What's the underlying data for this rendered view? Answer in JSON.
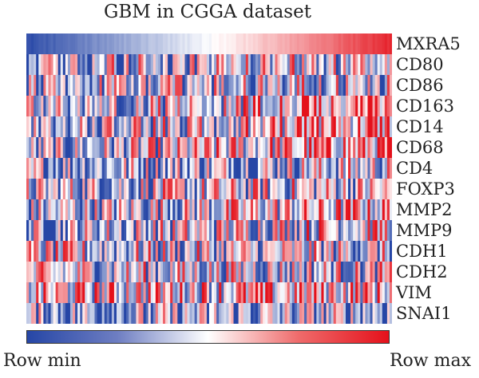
{
  "chart_data": {
    "type": "heatmap",
    "title": "GBM in CGGA dataset",
    "rows": [
      "MXRA5",
      "CD80",
      "CD86",
      "CD163",
      "CD14",
      "CD68",
      "CD4",
      "FOXP3",
      "MMP2",
      "MMP9",
      "CDH1",
      "CDH2",
      "VIM",
      "SNAI1"
    ],
    "n_columns": 150,
    "scale": "row-normalized",
    "colorbar": {
      "min_label": "Row min",
      "max_label": "Row max",
      "colors": [
        "#2646a6",
        "#ffffff",
        "#e4111b"
      ]
    },
    "row_trend": [
      [
        0.02,
        0.95
      ],
      [
        0.4,
        0.45
      ],
      [
        0.35,
        0.45
      ],
      [
        0.3,
        0.75
      ],
      [
        0.3,
        0.72
      ],
      [
        0.3,
        0.7
      ],
      [
        0.35,
        0.45
      ],
      [
        0.4,
        0.5
      ],
      [
        0.35,
        0.6
      ],
      [
        0.35,
        0.6
      ],
      [
        0.45,
        0.42
      ],
      [
        0.45,
        0.45
      ],
      [
        0.55,
        0.62
      ],
      [
        0.3,
        0.35
      ]
    ]
  }
}
